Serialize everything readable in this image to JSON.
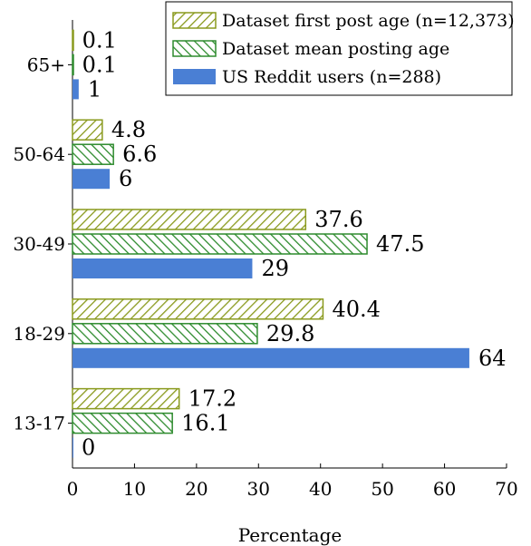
{
  "chart_data": {
    "type": "bar",
    "orientation": "horizontal",
    "categories": [
      "13-17",
      "18-29",
      "30-49",
      "50-64",
      "65+"
    ],
    "series": [
      {
        "name": "Dataset first post age (n=12,373)",
        "values": [
          17.2,
          40.4,
          37.6,
          4.8,
          0.1
        ],
        "labels": [
          "17.2",
          "40.4",
          "37.6",
          "4.8",
          "0.1"
        ],
        "color": "#8a9a1e",
        "pattern": "north-east-lines"
      },
      {
        "name": "Dataset mean posting age",
        "values": [
          16.1,
          29.8,
          47.5,
          6.6,
          0.1
        ],
        "labels": [
          "16.1",
          "29.8",
          "47.5",
          "6.6",
          "0.1"
        ],
        "color": "#2e8b2e",
        "pattern": "north-west-lines"
      },
      {
        "name": "US Reddit users (n=288)",
        "values": [
          0,
          64,
          29,
          6,
          1
        ],
        "labels": [
          "0",
          "64",
          "29",
          "6",
          "1"
        ],
        "color": "#4a7fd4",
        "pattern": "solid"
      }
    ],
    "xlabel": "Percentage",
    "ylabel": "",
    "xlim": [
      0,
      70
    ],
    "xticks": [
      "0",
      "10",
      "20",
      "30",
      "40",
      "50",
      "60",
      "70"
    ],
    "grid": false,
    "legend_position": "top-right"
  }
}
